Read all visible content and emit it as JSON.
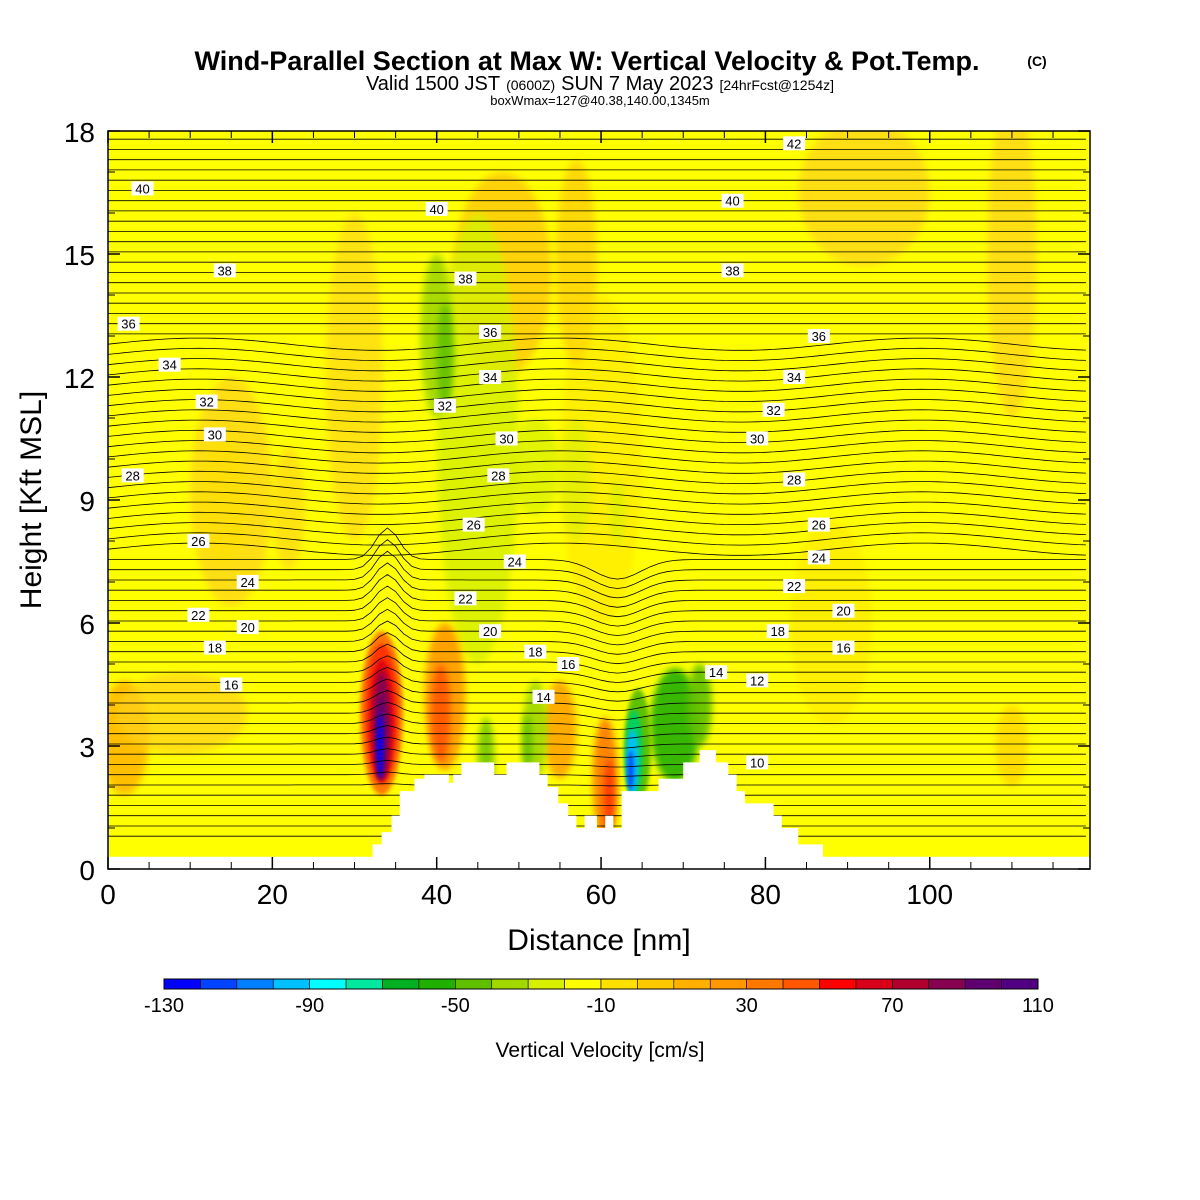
{
  "chart_data": {
    "type": "heatmap",
    "title": "Wind-Parallel Section at Max W: Vertical Velocity & Pot.Temp.",
    "title_mark": "(C)",
    "subtitle_parts": {
      "a": "Valid 1500 JST",
      "b": "(0600Z)",
      "c": "SUN 7 May 2023",
      "d": "[24hrFcst@1254z]"
    },
    "subtitle2": "boxWmax=127@40.38,140.00,1345m",
    "xlabel": "Distance [nm]",
    "ylabel": "Height [Kft MSL]",
    "xlim": [
      0,
      119.5
    ],
    "ylim": [
      0,
      18
    ],
    "x_ticks": [
      "0",
      "20",
      "40",
      "60",
      "80",
      "100"
    ],
    "x_tick_values": [
      0,
      20,
      40,
      60,
      80,
      100
    ],
    "y_ticks": [
      "0",
      "3",
      "6",
      "9",
      "12",
      "15",
      "18"
    ],
    "y_tick_values": [
      0,
      3,
      6,
      9,
      12,
      15,
      18
    ],
    "colorbar": {
      "label": "Vertical Velocity [cm/s]",
      "min": -130,
      "max": 110,
      "step": 10,
      "tick_labels": [
        "-130",
        "-90",
        "-50",
        "-10",
        "30",
        "70",
        "110"
      ],
      "tick_values": [
        -130,
        -90,
        -50,
        -10,
        30,
        70,
        110
      ],
      "colors": [
        "#0000ff",
        "#0044ff",
        "#0080ff",
        "#00c0ff",
        "#00ffff",
        "#00e8a0",
        "#00d060",
        "#00b020",
        "#20b000",
        "#60c000",
        "#a0d800",
        "#d8f000",
        "#ffff00",
        "#ffe000",
        "#ffc800",
        "#ffb000",
        "#ff9800",
        "#ff7800",
        "#ff5800",
        "#ff3000",
        "#ff0000",
        "#d80018",
        "#b00030",
        "#880050",
        "#600070",
        "#500080"
      ]
    },
    "theta_contour_labels": [
      {
        "value": "42",
        "x": 83.5,
        "y": 17.7
      },
      {
        "value": "40",
        "x": 4.2,
        "y": 16.6
      },
      {
        "value": "40",
        "x": 40.0,
        "y": 16.1
      },
      {
        "value": "40",
        "x": 76.0,
        "y": 16.3
      },
      {
        "value": "38",
        "x": 14.2,
        "y": 14.6
      },
      {
        "value": "38",
        "x": 43.5,
        "y": 14.4
      },
      {
        "value": "38",
        "x": 76.0,
        "y": 14.6
      },
      {
        "value": "36",
        "x": 2.5,
        "y": 13.3
      },
      {
        "value": "36",
        "x": 46.5,
        "y": 13.1
      },
      {
        "value": "36",
        "x": 86.5,
        "y": 13.0
      },
      {
        "value": "34",
        "x": 7.5,
        "y": 12.3
      },
      {
        "value": "34",
        "x": 46.5,
        "y": 12.0
      },
      {
        "value": "34",
        "x": 83.5,
        "y": 12.0
      },
      {
        "value": "32",
        "x": 12.0,
        "y": 11.4
      },
      {
        "value": "32",
        "x": 41.0,
        "y": 11.3
      },
      {
        "value": "32",
        "x": 81.0,
        "y": 11.2
      },
      {
        "value": "30",
        "x": 13.0,
        "y": 10.6
      },
      {
        "value": "30",
        "x": 48.5,
        "y": 10.5
      },
      {
        "value": "30",
        "x": 79.0,
        "y": 10.5
      },
      {
        "value": "28",
        "x": 3.0,
        "y": 9.6
      },
      {
        "value": "28",
        "x": 47.5,
        "y": 9.6
      },
      {
        "value": "28",
        "x": 83.5,
        "y": 9.5
      },
      {
        "value": "26",
        "x": 11.0,
        "y": 8.0
      },
      {
        "value": "26",
        "x": 44.5,
        "y": 8.4
      },
      {
        "value": "26",
        "x": 86.5,
        "y": 8.4
      },
      {
        "value": "24",
        "x": 17.0,
        "y": 7.0
      },
      {
        "value": "24",
        "x": 49.5,
        "y": 7.5
      },
      {
        "value": "24",
        "x": 86.5,
        "y": 7.6
      },
      {
        "value": "22",
        "x": 11.0,
        "y": 6.2
      },
      {
        "value": "22",
        "x": 43.5,
        "y": 6.6
      },
      {
        "value": "22",
        "x": 83.5,
        "y": 6.9
      },
      {
        "value": "20",
        "x": 17.0,
        "y": 5.9
      },
      {
        "value": "20",
        "x": 46.5,
        "y": 5.8
      },
      {
        "value": "20",
        "x": 89.5,
        "y": 6.3
      },
      {
        "value": "18",
        "x": 13.0,
        "y": 5.4
      },
      {
        "value": "18",
        "x": 52.0,
        "y": 5.3
      },
      {
        "value": "18",
        "x": 81.5,
        "y": 5.8
      },
      {
        "value": "16",
        "x": 15.0,
        "y": 4.5
      },
      {
        "value": "16",
        "x": 56.0,
        "y": 5.0
      },
      {
        "value": "16",
        "x": 89.5,
        "y": 5.4
      },
      {
        "value": "14",
        "x": 53.0,
        "y": 4.2
      },
      {
        "value": "14",
        "x": 74.0,
        "y": 4.8
      },
      {
        "value": "12",
        "x": 79.0,
        "y": 4.6
      },
      {
        "value": "10",
        "x": 79.0,
        "y": 2.6
      }
    ]
  }
}
